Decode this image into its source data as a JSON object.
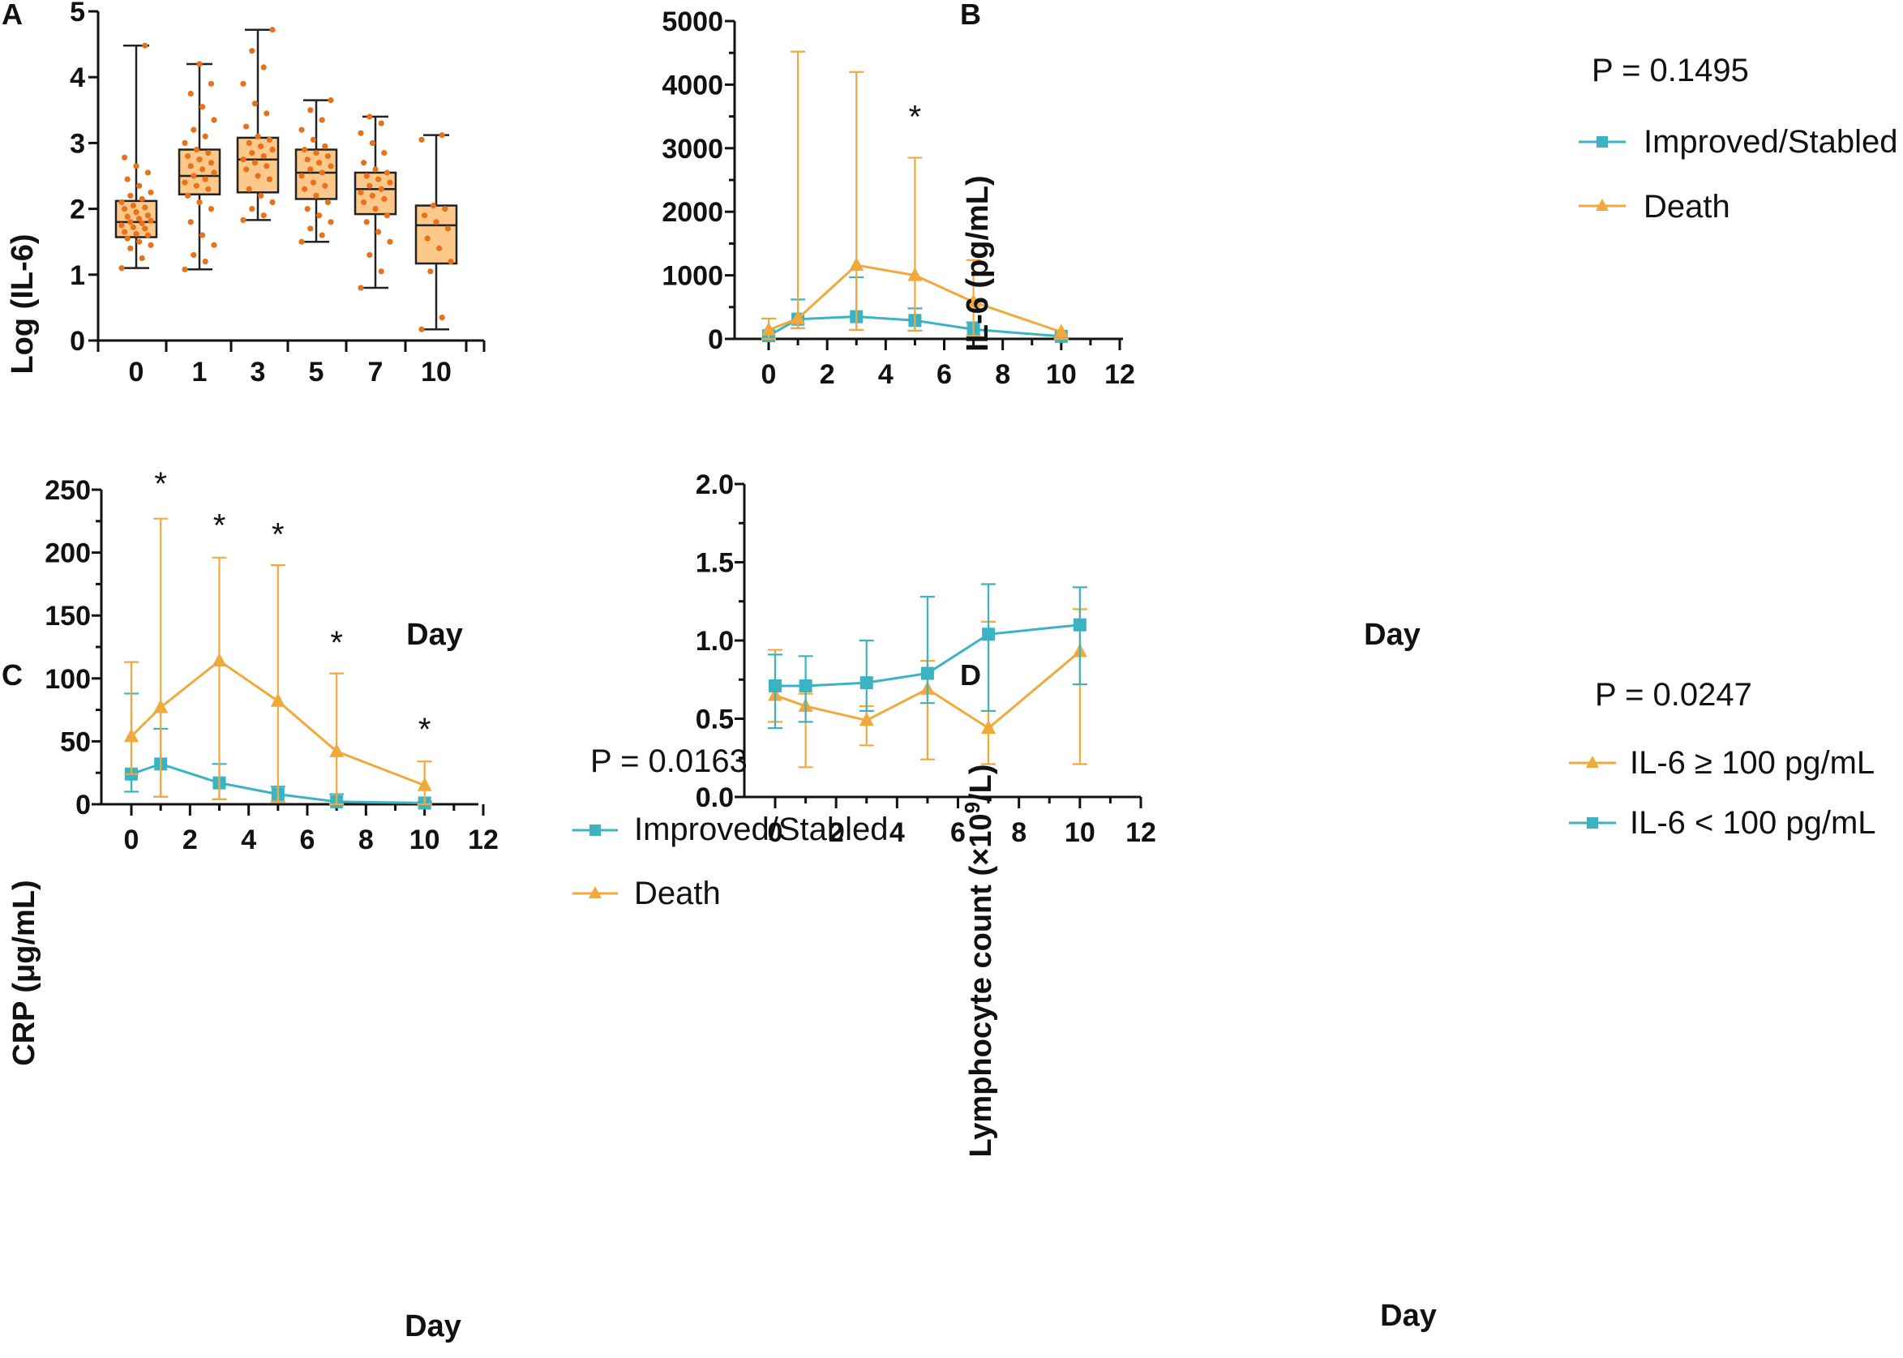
{
  "chart_data": [
    {
      "panel": "A",
      "type": "box",
      "xlabel": "Day",
      "ylabel": "Log (IL-6)",
      "ylim": [
        0,
        5
      ],
      "yticks": [
        0,
        1,
        2,
        3,
        4,
        5
      ],
      "categories": [
        "0",
        "1",
        "3",
        "5",
        "7",
        "10"
      ],
      "box_color": "#fdc98a",
      "point_color": "#e8711c",
      "boxes": [
        {
          "min": 1.1,
          "q1": 1.57,
          "median": 1.8,
          "q3": 2.12,
          "max": 4.48,
          "points": [
            1.1,
            1.25,
            1.4,
            1.45,
            1.5,
            1.55,
            1.6,
            1.62,
            1.65,
            1.7,
            1.72,
            1.75,
            1.78,
            1.8,
            1.82,
            1.85,
            1.88,
            1.9,
            1.95,
            2.0,
            2.02,
            2.05,
            2.1,
            2.15,
            2.2,
            2.25,
            2.35,
            2.45,
            2.55,
            2.65,
            2.78,
            4.48
          ]
        },
        {
          "min": 1.08,
          "q1": 2.22,
          "median": 2.5,
          "q3": 2.9,
          "max": 4.2,
          "points": [
            1.08,
            1.2,
            1.3,
            1.45,
            1.6,
            1.8,
            2.0,
            2.1,
            2.2,
            2.3,
            2.35,
            2.4,
            2.45,
            2.5,
            2.55,
            2.6,
            2.65,
            2.7,
            2.75,
            2.8,
            2.85,
            2.9,
            3.0,
            3.1,
            3.2,
            3.35,
            3.55,
            3.75,
            3.9,
            4.2
          ]
        },
        {
          "min": 1.83,
          "q1": 2.25,
          "median": 2.75,
          "q3": 3.08,
          "max": 4.72,
          "points": [
            1.83,
            1.9,
            2.0,
            2.1,
            2.2,
            2.3,
            2.45,
            2.5,
            2.6,
            2.65,
            2.7,
            2.75,
            2.8,
            2.85,
            2.9,
            2.95,
            3.0,
            3.05,
            3.1,
            3.25,
            3.45,
            3.6,
            3.9,
            4.15,
            4.4,
            4.72
          ]
        },
        {
          "min": 1.5,
          "q1": 2.15,
          "median": 2.55,
          "q3": 2.9,
          "max": 3.65,
          "points": [
            1.5,
            1.6,
            1.7,
            1.8,
            1.9,
            2.0,
            2.1,
            2.2,
            2.3,
            2.35,
            2.4,
            2.5,
            2.55,
            2.6,
            2.65,
            2.7,
            2.75,
            2.8,
            2.85,
            2.9,
            2.95,
            3.05,
            3.2,
            3.35,
            3.5,
            3.65
          ]
        },
        {
          "min": 0.8,
          "q1": 1.92,
          "median": 2.3,
          "q3": 2.55,
          "max": 3.4,
          "points": [
            0.8,
            1.05,
            1.3,
            1.5,
            1.65,
            1.8,
            1.9,
            2.0,
            2.1,
            2.15,
            2.2,
            2.25,
            2.3,
            2.35,
            2.4,
            2.45,
            2.5,
            2.55,
            2.6,
            2.7,
            2.85,
            3.0,
            3.15,
            3.3,
            3.4
          ]
        },
        {
          "min": 0.17,
          "q1": 1.17,
          "median": 1.75,
          "q3": 2.05,
          "max": 3.12,
          "points": [
            0.17,
            0.35,
            1.05,
            1.2,
            1.4,
            1.55,
            1.7,
            1.8,
            1.9,
            2.0,
            2.05,
            3.05,
            3.12
          ]
        }
      ]
    },
    {
      "panel": "B",
      "type": "line",
      "xlabel": "Day",
      "ylabel": "IL-6 (pg/mL)",
      "xlim": [
        0,
        12
      ],
      "ylim": [
        0,
        5000
      ],
      "xticks": [
        0,
        2,
        4,
        6,
        8,
        10,
        12
      ],
      "yticks": [
        0,
        1000,
        2000,
        3000,
        4000,
        5000
      ],
      "p_text": "P = 0.1495",
      "significance": [
        {
          "x": 5,
          "y": 3500,
          "label": "*"
        }
      ],
      "series": [
        {
          "name": "Improved/Stabled",
          "marker": "square",
          "color": "#3bb3c3",
          "x": [
            0,
            1,
            3,
            5,
            7,
            10
          ],
          "y": [
            50,
            310,
            350,
            290,
            150,
            40
          ],
          "err_up": [
            0,
            620,
            970,
            480,
            260,
            0
          ],
          "err_low": [
            0,
            170,
            140,
            130,
            50,
            0
          ]
        },
        {
          "name": "Death",
          "marker": "triangle",
          "color": "#f2a93b",
          "x": [
            0,
            1,
            3,
            5,
            7,
            10
          ],
          "y": [
            140,
            320,
            1160,
            1000,
            580,
            110
          ],
          "err_up": [
            320,
            4520,
            4200,
            2850,
            1240,
            110
          ],
          "err_low": [
            0,
            170,
            140,
            130,
            50,
            0
          ]
        }
      ]
    },
    {
      "panel": "C",
      "type": "line",
      "xlabel": "Day",
      "ylabel": "CRP (μg/mL)",
      "xlim": [
        0,
        12
      ],
      "ylim": [
        0,
        250
      ],
      "xticks": [
        0,
        2,
        4,
        6,
        8,
        10,
        12
      ],
      "yticks": [
        0,
        50,
        100,
        150,
        200,
        250
      ],
      "p_text": "P = 0.0163",
      "significance": [
        {
          "x": 1,
          "y": 255,
          "label": "*"
        },
        {
          "x": 3,
          "y": 222,
          "label": "*"
        },
        {
          "x": 5,
          "y": 215,
          "label": "*"
        },
        {
          "x": 7,
          "y": 129,
          "label": "*"
        },
        {
          "x": 10,
          "y": 60,
          "label": "*"
        }
      ],
      "series": [
        {
          "name": "Improved/Stabled",
          "marker": "square",
          "color": "#3bb3c3",
          "x": [
            0,
            1,
            3,
            5,
            7,
            10
          ],
          "y": [
            24,
            32,
            17,
            8,
            2,
            1
          ],
          "err_up": [
            88,
            60,
            32,
            14,
            8,
            2
          ],
          "err_low": [
            10,
            6,
            4,
            2,
            0,
            0
          ]
        },
        {
          "name": "Death",
          "marker": "triangle",
          "color": "#f2a93b",
          "x": [
            0,
            1,
            3,
            5,
            7,
            10
          ],
          "y": [
            54,
            77,
            114,
            82,
            42,
            15
          ],
          "err_up": [
            113,
            227,
            196,
            190,
            104,
            34
          ],
          "err_low": [
            24,
            6,
            4,
            2,
            0,
            0
          ]
        }
      ]
    },
    {
      "panel": "D",
      "type": "line",
      "xlabel": "Day",
      "ylabel_pre": "Lymphocyte count (×10",
      "ylabel_sup": "9",
      "ylabel_post": "/L)",
      "xlim": [
        0,
        12
      ],
      "ylim": [
        0,
        2.0
      ],
      "xticks": [
        0,
        2,
        4,
        6,
        8,
        10,
        12
      ],
      "yticks": [
        "0.0",
        "0.5",
        "1.0",
        "1.5",
        "2.0"
      ],
      "p_text": "P = 0.0247",
      "series": [
        {
          "name": "IL-6 ≥ 100 pg/mL",
          "marker": "triangle",
          "color": "#f2a93b",
          "x": [
            0,
            1,
            3,
            5,
            7,
            10
          ],
          "y": [
            0.65,
            0.58,
            0.49,
            0.69,
            0.44,
            0.93
          ],
          "err_up": [
            0.94,
            0.66,
            0.58,
            0.87,
            1.12,
            1.2
          ],
          "err_low": [
            0.48,
            0.19,
            0.33,
            0.24,
            0.21,
            0.21
          ]
        },
        {
          "name": "IL-6 < 100 pg/mL",
          "marker": "square",
          "color": "#3bb3c3",
          "x": [
            0,
            1,
            3,
            5,
            7,
            10
          ],
          "y": [
            0.71,
            0.71,
            0.73,
            0.79,
            1.04,
            1.1
          ],
          "err_up": [
            0.91,
            0.9,
            1.0,
            1.28,
            1.36,
            1.34
          ],
          "err_low": [
            0.44,
            0.48,
            0.55,
            0.6,
            0.55,
            0.72
          ]
        }
      ]
    }
  ]
}
